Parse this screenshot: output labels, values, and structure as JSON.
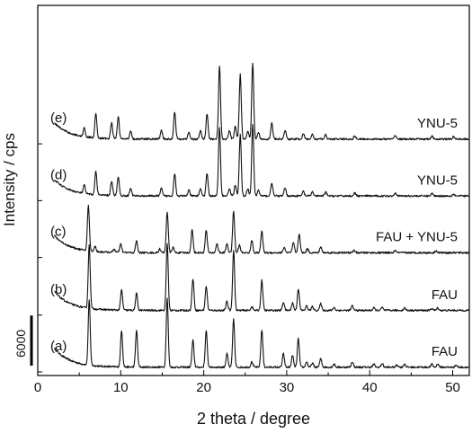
{
  "chart_data": {
    "type": "line",
    "ylabel": "Intensity / cps",
    "xlabel": "2 theta / degree",
    "xlim": [
      0,
      52
    ],
    "x_ticks": [
      0,
      10,
      20,
      30,
      40,
      50
    ],
    "x_minor_ticks": [
      5,
      15,
      25,
      35,
      45
    ],
    "grid": false,
    "scale_bar": {
      "label": "6000",
      "value": 6000
    },
    "series": [
      {
        "id": "a",
        "tag": "(a)",
        "name": "FAU",
        "offset": 0,
        "background": {
          "start": 2600,
          "min": 350,
          "decay": 1.9
        },
        "peaks": [
          [
            6.2,
            7800
          ],
          [
            10.1,
            4400
          ],
          [
            11.9,
            4400
          ],
          [
            15.6,
            8200
          ],
          [
            18.7,
            3200
          ],
          [
            20.3,
            4400
          ],
          [
            22.8,
            1600
          ],
          [
            23.6,
            5800
          ],
          [
            25.8,
            650
          ],
          [
            27.0,
            4500
          ],
          [
            29.6,
            1600
          ],
          [
            30.7,
            1400
          ],
          [
            31.4,
            3400
          ],
          [
            32.4,
            650
          ],
          [
            33.1,
            500
          ],
          [
            34.1,
            1050
          ],
          [
            35.7,
            400
          ],
          [
            37.9,
            650
          ],
          [
            40.5,
            350
          ],
          [
            41.5,
            450
          ],
          [
            43.3,
            300
          ],
          [
            44.2,
            400
          ],
          [
            47.5,
            350
          ],
          [
            48.2,
            400
          ],
          [
            50.4,
            250
          ]
        ]
      },
      {
        "id": "b",
        "tag": "(b)",
        "name": "FAU",
        "offset": 6800,
        "background": {
          "start": 2600,
          "min": 350,
          "decay": 1.9
        },
        "peaks": [
          [
            6.2,
            7600
          ],
          [
            10.1,
            2400
          ],
          [
            11.9,
            2000
          ],
          [
            15.6,
            8000
          ],
          [
            18.7,
            3800
          ],
          [
            20.3,
            2900
          ],
          [
            22.8,
            1050
          ],
          [
            23.6,
            7200
          ],
          [
            25.8,
            450
          ],
          [
            27.0,
            3600
          ],
          [
            29.6,
            1000
          ],
          [
            30.7,
            900
          ],
          [
            31.4,
            2600
          ],
          [
            32.4,
            550
          ],
          [
            33.1,
            450
          ],
          [
            34.1,
            800
          ],
          [
            35.7,
            350
          ],
          [
            37.9,
            550
          ],
          [
            40.5,
            300
          ],
          [
            41.5,
            350
          ],
          [
            44.2,
            300
          ],
          [
            47.5,
            250
          ],
          [
            48.2,
            300
          ]
        ]
      },
      {
        "id": "c",
        "tag": "(c)",
        "name": "FAU + YNU-5",
        "offset": 13700,
        "background": {
          "start": 2400,
          "min": 350,
          "decay": 1.9
        },
        "peaks": [
          [
            6.1,
            5400
          ],
          [
            6.9,
            600
          ],
          [
            9.2,
            400
          ],
          [
            10.0,
            1000
          ],
          [
            11.9,
            1400
          ],
          [
            14.7,
            450
          ],
          [
            15.6,
            4900
          ],
          [
            16.3,
            650
          ],
          [
            18.6,
            2700
          ],
          [
            20.3,
            2700
          ],
          [
            21.6,
            1100
          ],
          [
            22.8,
            1100
          ],
          [
            23.6,
            5000
          ],
          [
            24.3,
            900
          ],
          [
            25.8,
            1500
          ],
          [
            27.0,
            2600
          ],
          [
            29.7,
            650
          ],
          [
            30.8,
            1200
          ],
          [
            31.5,
            2300
          ],
          [
            32.5,
            500
          ],
          [
            34.1,
            700
          ],
          [
            38.1,
            300
          ],
          [
            43.1,
            250
          ],
          [
            48.0,
            250
          ]
        ]
      },
      {
        "id": "d",
        "tag": "(d)",
        "name": "YNU-5",
        "offset": 20500,
        "background": {
          "start": 2300,
          "min": 350,
          "decay": 1.9
        },
        "peaks": [
          [
            5.6,
            1000
          ],
          [
            7.0,
            2800
          ],
          [
            8.9,
            1700
          ],
          [
            9.7,
            2300
          ],
          [
            11.2,
            900
          ],
          [
            14.9,
            900
          ],
          [
            16.5,
            2700
          ],
          [
            18.2,
            700
          ],
          [
            19.6,
            900
          ],
          [
            20.4,
            2700
          ],
          [
            21.9,
            8300
          ],
          [
            23.1,
            900
          ],
          [
            23.8,
            1300
          ],
          [
            24.4,
            7400
          ],
          [
            25.3,
            900
          ],
          [
            25.9,
            8500
          ],
          [
            26.6,
            700
          ],
          [
            28.2,
            1600
          ],
          [
            29.8,
            1000
          ],
          [
            32.0,
            550
          ],
          [
            33.1,
            500
          ],
          [
            34.7,
            450
          ],
          [
            38.2,
            350
          ],
          [
            43.1,
            400
          ],
          [
            47.5,
            300
          ],
          [
            50.1,
            250
          ]
        ]
      },
      {
        "id": "e",
        "tag": "(e)",
        "name": "YNU-5",
        "offset": 27300,
        "background": {
          "start": 2300,
          "min": 350,
          "decay": 1.9
        },
        "peaks": [
          [
            5.6,
            1100
          ],
          [
            7.0,
            3000
          ],
          [
            8.9,
            1900
          ],
          [
            9.7,
            2600
          ],
          [
            11.2,
            1000
          ],
          [
            14.9,
            1000
          ],
          [
            16.5,
            3300
          ],
          [
            18.2,
            800
          ],
          [
            19.6,
            1000
          ],
          [
            20.4,
            3000
          ],
          [
            21.9,
            8800
          ],
          [
            23.1,
            1000
          ],
          [
            23.8,
            1500
          ],
          [
            24.4,
            7800
          ],
          [
            25.3,
            1000
          ],
          [
            25.9,
            9000
          ],
          [
            26.6,
            800
          ],
          [
            28.2,
            1900
          ],
          [
            29.8,
            1100
          ],
          [
            32.0,
            650
          ],
          [
            33.1,
            550
          ],
          [
            34.7,
            500
          ],
          [
            38.2,
            400
          ],
          [
            43.1,
            450
          ],
          [
            47.5,
            350
          ],
          [
            50.1,
            300
          ]
        ]
      }
    ]
  }
}
